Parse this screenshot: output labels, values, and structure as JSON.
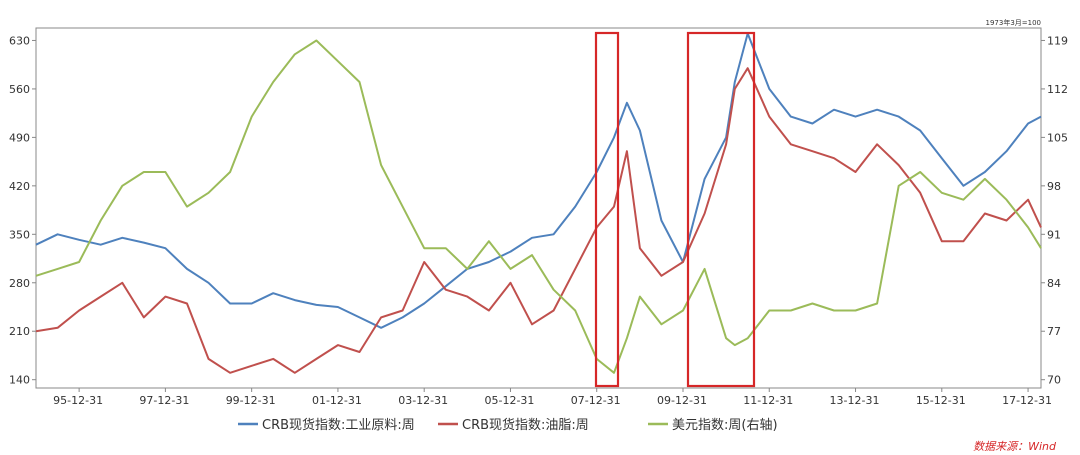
{
  "chart_data": {
    "type": "line",
    "title": "",
    "unit_note": "1973年3月=100",
    "source": "数据来源：Wind",
    "x_ticks": [
      "95-12-31",
      "97-12-31",
      "99-12-31",
      "01-12-31",
      "03-12-31",
      "05-12-31",
      "07-12-31",
      "09-12-31",
      "11-12-31",
      "13-12-31",
      "15-12-31",
      "17-12-31"
    ],
    "xlim": [
      1995.0,
      2018.3
    ],
    "y_left": {
      "ticks": [
        140,
        210,
        280,
        350,
        420,
        490,
        560,
        630
      ],
      "ylim": [
        128,
        648
      ]
    },
    "y_right": {
      "ticks": [
        70,
        77,
        84,
        91,
        98,
        105,
        112,
        119
      ],
      "ylim": [
        68.8,
        120.8
      ]
    },
    "grid": false,
    "legend_position": "bottom",
    "series": [
      {
        "name": "CRB现货指数:工业原料:周",
        "axis": "left",
        "color": "#4e81bd",
        "x": [
          1995.0,
          1995.5,
          1996.0,
          1996.5,
          1997.0,
          1997.5,
          1998.0,
          1998.5,
          1999.0,
          1999.5,
          2000.0,
          2000.5,
          2001.0,
          2001.5,
          2002.0,
          2002.5,
          2003.0,
          2003.5,
          2004.0,
          2004.5,
          2005.0,
          2005.5,
          2006.0,
          2006.5,
          2007.0,
          2007.5,
          2008.0,
          2008.4,
          2008.7,
          2009.0,
          2009.5,
          2010.0,
          2010.5,
          2011.0,
          2011.2,
          2011.5,
          2012.0,
          2012.5,
          2013.0,
          2013.5,
          2014.0,
          2014.5,
          2015.0,
          2015.5,
          2016.0,
          2016.5,
          2017.0,
          2017.5,
          2018.0,
          2018.3
        ],
        "y": [
          335,
          350,
          342,
          335,
          345,
          338,
          330,
          300,
          280,
          250,
          250,
          265,
          255,
          248,
          245,
          230,
          215,
          230,
          250,
          275,
          300,
          310,
          325,
          345,
          350,
          390,
          440,
          490,
          540,
          500,
          370,
          310,
          430,
          490,
          570,
          640,
          560,
          520,
          510,
          530,
          520,
          530,
          520,
          500,
          460,
          420,
          440,
          470,
          510,
          520
        ]
      },
      {
        "name": "CRB现货指数:油脂:周",
        "axis": "left",
        "color": "#c0504d",
        "x": [
          1995.0,
          1995.5,
          1996.0,
          1996.5,
          1997.0,
          1997.5,
          1998.0,
          1998.5,
          1999.0,
          1999.5,
          2000.0,
          2000.5,
          2001.0,
          2001.5,
          2002.0,
          2002.5,
          2003.0,
          2003.5,
          2004.0,
          2004.5,
          2005.0,
          2005.5,
          2006.0,
          2006.5,
          2007.0,
          2007.5,
          2008.0,
          2008.4,
          2008.7,
          2009.0,
          2009.5,
          2010.0,
          2010.5,
          2011.0,
          2011.2,
          2011.5,
          2012.0,
          2012.5,
          2013.0,
          2013.5,
          2014.0,
          2014.5,
          2015.0,
          2015.5,
          2016.0,
          2016.5,
          2017.0,
          2017.5,
          2018.0,
          2018.3
        ],
        "y": [
          210,
          215,
          240,
          260,
          280,
          230,
          260,
          250,
          170,
          150,
          160,
          170,
          150,
          170,
          190,
          180,
          230,
          240,
          310,
          270,
          260,
          240,
          280,
          220,
          240,
          300,
          360,
          390,
          470,
          330,
          290,
          310,
          380,
          480,
          560,
          590,
          520,
          480,
          470,
          460,
          440,
          480,
          450,
          410,
          340,
          340,
          380,
          370,
          400,
          360
        ]
      },
      {
        "name": "美元指数:周(右轴)",
        "axis": "right",
        "color": "#9bbb59",
        "x": [
          1995.0,
          1995.5,
          1996.0,
          1996.5,
          1997.0,
          1997.5,
          1998.0,
          1998.5,
          1999.0,
          1999.5,
          2000.0,
          2000.5,
          2001.0,
          2001.5,
          2002.0,
          2002.5,
          2003.0,
          2003.5,
          2004.0,
          2004.5,
          2005.0,
          2005.5,
          2006.0,
          2006.5,
          2007.0,
          2007.5,
          2008.0,
          2008.4,
          2008.7,
          2009.0,
          2009.5,
          2010.0,
          2010.5,
          2011.0,
          2011.2,
          2011.5,
          2012.0,
          2012.5,
          2013.0,
          2013.5,
          2014.0,
          2014.5,
          2015.0,
          2015.5,
          2016.0,
          2016.5,
          2017.0,
          2017.5,
          2018.0,
          2018.3
        ],
        "y": [
          85,
          86,
          87,
          93,
          98,
          100,
          100,
          95,
          97,
          100,
          108,
          113,
          117,
          119,
          116,
          113,
          101,
          95,
          89,
          89,
          86,
          90,
          86,
          88,
          83,
          80,
          73,
          71,
          76,
          82,
          78,
          80,
          86,
          76,
          75,
          76,
          80,
          80,
          81,
          80,
          80,
          81,
          98,
          100,
          97,
          96,
          99,
          96,
          92,
          89
        ]
      }
    ]
  }
}
